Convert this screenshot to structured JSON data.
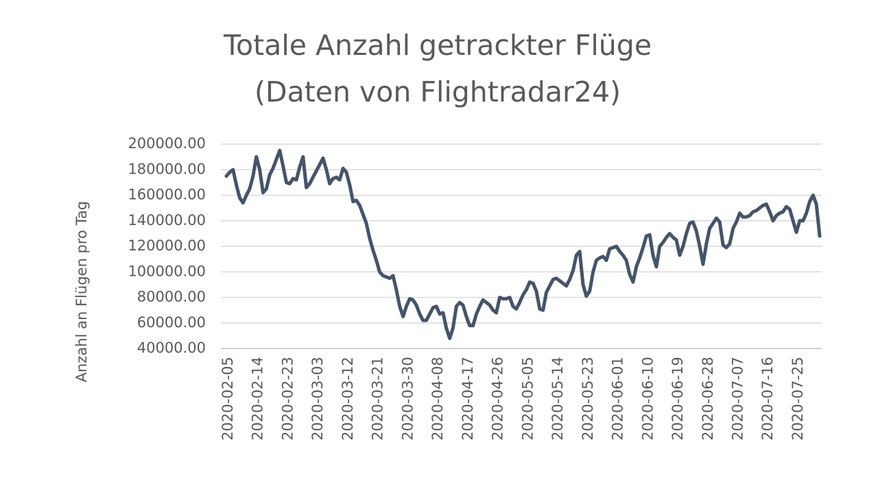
{
  "chart_data": {
    "type": "line",
    "title": [
      "Totale Anzahl getrackter Flüge",
      "(Daten von Flightradar24)"
    ],
    "y_label": "Anzahl an Flügen pro Tag",
    "categories": [
      "2020-02-05",
      null,
      null,
      null,
      null,
      null,
      null,
      null,
      null,
      "2020-02-14",
      null,
      null,
      null,
      null,
      null,
      null,
      null,
      null,
      "2020-02-23",
      null,
      null,
      null,
      null,
      null,
      null,
      null,
      null,
      "2020-03-03",
      null,
      null,
      null,
      null,
      null,
      null,
      null,
      null,
      "2020-03-12",
      null,
      null,
      null,
      null,
      null,
      null,
      null,
      null,
      "2020-03-21",
      null,
      null,
      null,
      null,
      null,
      null,
      null,
      null,
      "2020-03-30",
      null,
      null,
      null,
      null,
      null,
      null,
      null,
      null,
      "2020-04-08",
      null,
      null,
      null,
      null,
      null,
      null,
      null,
      null,
      "2020-04-17",
      null,
      null,
      null,
      null,
      null,
      null,
      null,
      null,
      "2020-04-26",
      null,
      null,
      null,
      null,
      null,
      null,
      null,
      null,
      "2020-05-05",
      null,
      null,
      null,
      null,
      null,
      null,
      null,
      null,
      "2020-05-14",
      null,
      null,
      null,
      null,
      null,
      null,
      null,
      null,
      "2020-05-23",
      null,
      null,
      null,
      null,
      null,
      null,
      null,
      null,
      "2020-06-01",
      null,
      null,
      null,
      null,
      null,
      null,
      null,
      null,
      "2020-06-10",
      null,
      null,
      null,
      null,
      null,
      null,
      null,
      null,
      "2020-06-19",
      null,
      null,
      null,
      null,
      null,
      null,
      null,
      null,
      "2020-06-28",
      null,
      null,
      null,
      null,
      null,
      null,
      null,
      null,
      "2020-07-07",
      null,
      null,
      null,
      null,
      null,
      null,
      null,
      null,
      "2020-07-16",
      null,
      null,
      null,
      null,
      null,
      null,
      null,
      null,
      "2020-07-25",
      null,
      null,
      null,
      null,
      null,
      null,
      null
    ],
    "values": [
      175000,
      178000,
      180000,
      168000,
      158000,
      154000,
      160000,
      165000,
      175000,
      190000,
      180000,
      162000,
      165000,
      176000,
      181000,
      188000,
      195000,
      183000,
      170000,
      169000,
      173000,
      172000,
      182000,
      190000,
      166000,
      169000,
      174000,
      179000,
      184000,
      189000,
      180000,
      169000,
      173000,
      174000,
      172000,
      181000,
      178000,
      168000,
      155000,
      156000,
      152000,
      145000,
      138000,
      126000,
      117000,
      109000,
      100000,
      97000,
      96000,
      95000,
      97000,
      86000,
      73000,
      65000,
      73000,
      79000,
      78000,
      74000,
      67000,
      62000,
      62000,
      67000,
      72000,
      73000,
      67000,
      68000,
      56000,
      48000,
      56000,
      73000,
      76000,
      74000,
      65000,
      58000,
      58000,
      67000,
      73000,
      78000,
      76000,
      74000,
      70000,
      68000,
      80000,
      79000,
      79000,
      80000,
      73000,
      71000,
      76000,
      82000,
      86000,
      92000,
      91000,
      85000,
      71000,
      70000,
      84000,
      89000,
      94000,
      95000,
      93000,
      91000,
      89000,
      94000,
      101000,
      113000,
      116000,
      90000,
      81000,
      85000,
      100000,
      109000,
      111000,
      112000,
      109000,
      118000,
      119000,
      120000,
      116000,
      113000,
      109000,
      98000,
      92000,
      104000,
      111000,
      119000,
      128000,
      129000,
      113000,
      104000,
      120000,
      123000,
      127000,
      130000,
      127000,
      125000,
      113000,
      120000,
      130000,
      138000,
      139000,
      132000,
      120000,
      106000,
      122000,
      134000,
      138000,
      142000,
      139000,
      121000,
      119000,
      122000,
      134000,
      139000,
      146000,
      143000,
      143000,
      144000,
      147000,
      148000,
      150000,
      152000,
      153000,
      147000,
      140000,
      144000,
      146000,
      147000,
      151000,
      149000,
      140000,
      131000,
      140000,
      140000,
      146000,
      155000,
      160000,
      153000,
      128000
    ],
    "color": "#44546a",
    "ylim": [
      40000,
      200000
    ],
    "yticks": [
      {
        "value": 40000,
        "label": "40000.00"
      },
      {
        "value": 60000,
        "label": "60000.00"
      },
      {
        "value": 80000,
        "label": "80000.00"
      },
      {
        "value": 100000,
        "label": "100000.00"
      },
      {
        "value": 120000,
        "label": "120000.00"
      },
      {
        "value": 140000,
        "label": "140000.00"
      },
      {
        "value": 160000,
        "label": "160000.00"
      },
      {
        "value": 180000,
        "label": "180000.00"
      },
      {
        "value": 200000,
        "label": "200000.00"
      }
    ],
    "grid": true
  }
}
